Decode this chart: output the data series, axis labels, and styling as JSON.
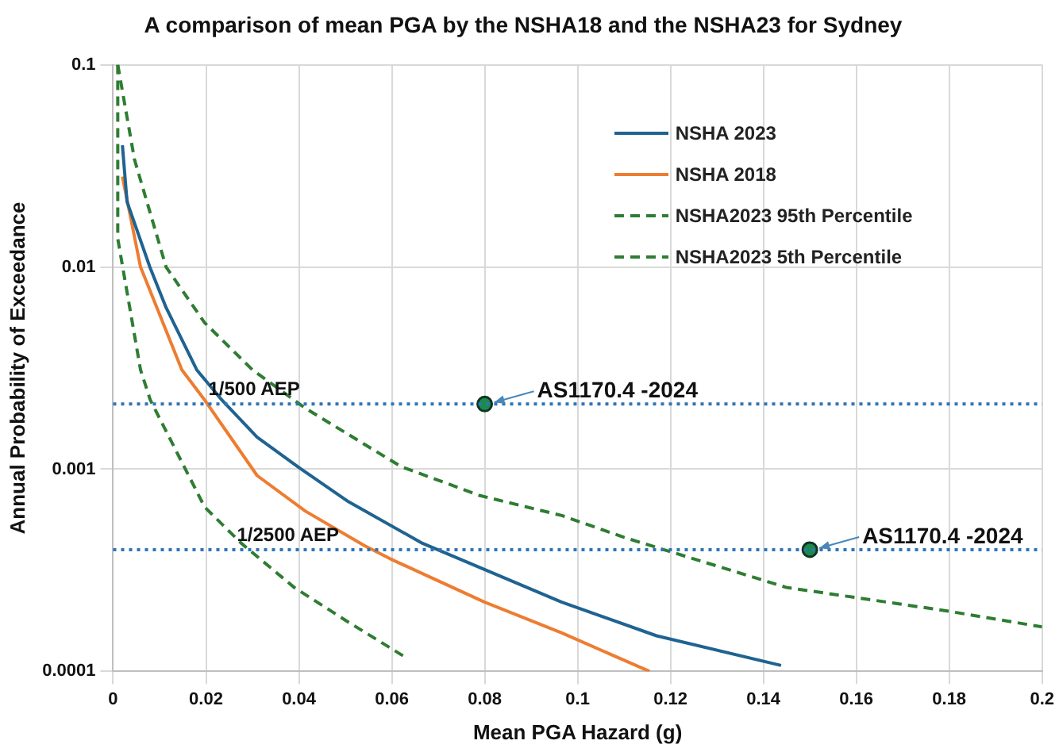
{
  "chart_data": {
    "type": "line",
    "title": "A comparison of mean PGA by the NSHA18 and the NSHA23 for Sydney",
    "xlabel": "Mean PGA Hazard (g)",
    "ylabel": "Annual Probability of Exceedance",
    "xlim": [
      0,
      0.2
    ],
    "xticks": [
      0,
      0.02,
      0.04,
      0.06,
      0.08,
      0.1,
      0.12,
      0.14,
      0.16,
      0.18,
      0.2
    ],
    "ylim": [
      0.0001,
      0.1
    ],
    "yticks": [
      0.0001,
      0.001,
      0.01,
      0.1
    ],
    "log": "y",
    "grid": true,
    "legend": "top right",
    "marker": "none",
    "series": [
      {
        "name": "NSHA 2023",
        "color": "#1f6391",
        "line_style": "solid",
        "x": [
          0.002,
          0.003,
          0.0079,
          0.0114,
          0.018,
          0.0234,
          0.031,
          0.04,
          0.0507,
          0.0666,
          0.0966,
          0.117,
          0.1438
        ],
        "values": [
          0.04,
          0.021,
          0.01,
          0.0063,
          0.0031,
          0.0022,
          0.00144,
          0.00102,
          0.00069,
          0.00043,
          0.00022,
          0.00015,
          0.000107
        ]
      },
      {
        "name": "NSHA 2018",
        "color": "#ed7d31",
        "line_style": "solid",
        "x": [
          0.002,
          0.0059,
          0.0148,
          0.0197,
          0.031,
          0.0414,
          0.054,
          0.0597,
          0.08,
          0.0966,
          0.1155
        ],
        "values": [
          0.028,
          0.01,
          0.0031,
          0.0022,
          0.00093,
          0.00062,
          0.00042,
          0.00036,
          0.00022,
          0.000155,
          0.0001
        ]
      },
      {
        "name": "NSHA2023 95th Percentile",
        "color": "#2e7d32",
        "line_style": "dashed",
        "x": [
          0.001,
          0.0046,
          0.0114,
          0.0197,
          0.03,
          0.0414,
          0.062,
          0.079,
          0.0966,
          0.11,
          0.145,
          0.179,
          0.2
        ],
        "values": [
          0.1,
          0.034,
          0.01,
          0.0053,
          0.0031,
          0.002,
          0.00103,
          0.00074,
          0.00059,
          0.00046,
          0.00026,
          0.0002,
          0.000166
        ]
      },
      {
        "name": "NSHA2023 5th Percentile",
        "color": "#2e7d32",
        "line_style": "dashed",
        "x": [
          0.001,
          0.001,
          0.0059,
          0.008,
          0.0197,
          0.0276,
          0.039,
          0.0507,
          0.0628
        ],
        "values": [
          0.1,
          0.0138,
          0.0031,
          0.0022,
          0.00065,
          0.00043,
          0.00026,
          0.000175,
          0.000118
        ]
      },
      {
        "type": "scatter",
        "color": "#1b8a4c",
        "marker": "circle",
        "x": [
          0.08,
          0.15
        ],
        "values": [
          0.0021,
          0.0004
        ]
      }
    ],
    "ref_lines": [
      {
        "axis": "y",
        "value": 0.0021,
        "label": "1/500 AEP",
        "color": "#2e75b6",
        "line_style": "dotted"
      },
      {
        "axis": "y",
        "value": 0.0004,
        "label": "1/2500 AEP",
        "color": "#2e75b6",
        "line_style": "dotted"
      }
    ],
    "annotations": [
      {
        "text": "AS1170.4 -2024",
        "x": 0.08,
        "y": 0.0021
      },
      {
        "text": "AS1170.4 -2024",
        "x": 0.15,
        "y": 0.0004
      }
    ]
  }
}
